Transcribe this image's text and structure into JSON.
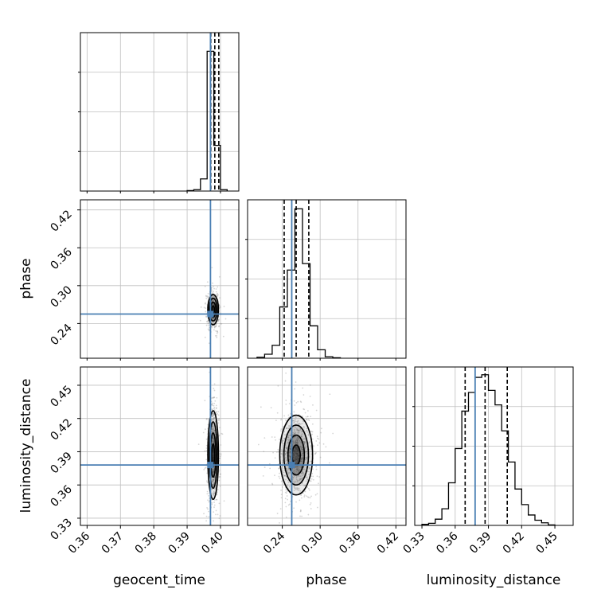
{
  "chart_data": {
    "type": "corner",
    "parameters": [
      "geocent_time",
      "phase",
      "luminosity_distance"
    ],
    "truths": {
      "geocent_time": 0.397,
      "phase": 0.255,
      "luminosity_distance": 0.378
    },
    "ranges": {
      "geocent_time": [
        0.358,
        0.4055
      ],
      "phase": [
        0.185,
        0.436
      ],
      "luminosity_distance": [
        0.3235,
        0.4665
      ]
    },
    "ticks": {
      "geocent_time": {
        "values": [
          0.36,
          0.37,
          0.38,
          0.39,
          0.4
        ],
        "labels": [
          "0.36",
          "0.37",
          "0.38",
          "0.39",
          "0.40"
        ]
      },
      "phase": {
        "values": [
          0.24,
          0.3,
          0.36,
          0.42
        ],
        "labels": [
          "0.24",
          "0.30",
          "0.36",
          "0.42"
        ]
      },
      "luminosity_distance": {
        "values": [
          0.33,
          0.36,
          0.39,
          0.42,
          0.45
        ],
        "labels": [
          "0.33",
          "0.36",
          "0.39",
          "0.42",
          "0.45"
        ]
      }
    },
    "quantiles": {
      "geocent_time": [
        0.3971,
        0.3983,
        0.3995
      ],
      "phase": [
        0.243,
        0.262,
        0.282
      ],
      "luminosity_distance": [
        0.369,
        0.387,
        0.407
      ]
    },
    "marginals": {
      "geocent_time": {
        "bins": [
          0.39,
          0.392,
          0.394,
          0.396,
          0.398,
          0.4,
          0.402
        ],
        "counts": [
          1,
          3,
          26,
          300,
          98,
          3
        ],
        "ylim": [
          0,
          340
        ]
      },
      "phase": {
        "bins": [
          0.2,
          0.212,
          0.224,
          0.236,
          0.248,
          0.26,
          0.272,
          0.284,
          0.296,
          0.308,
          0.32,
          0.332
        ],
        "counts": [
          2,
          8,
          26,
          103,
          177,
          300,
          190,
          65,
          17,
          3,
          1
        ],
        "ylim": [
          0,
          318
        ]
      },
      "luminosity_distance": {
        "bins": [
          0.33,
          0.336,
          0.342,
          0.348,
          0.354,
          0.36,
          0.366,
          0.372,
          0.378,
          0.384,
          0.39,
          0.396,
          0.402,
          0.408,
          0.414,
          0.42,
          0.426,
          0.432,
          0.438,
          0.444,
          0.45
        ],
        "counts": [
          2,
          4,
          12,
          32,
          82,
          148,
          220,
          256,
          285,
          290,
          260,
          232,
          182,
          122,
          70,
          40,
          20,
          10,
          5,
          1
        ],
        "ylim": [
          0,
          305
        ]
      }
    },
    "joint": [
      {
        "x": "geocent_time",
        "y": "phase",
        "center": [
          0.3978,
          0.262
        ],
        "sigma": [
          0.0008,
          0.012
        ]
      },
      {
        "x": "geocent_time",
        "y": "luminosity_distance",
        "center": [
          0.3978,
          0.387
        ],
        "sigma": [
          0.0008,
          0.02
        ]
      },
      {
        "x": "phase",
        "y": "luminosity_distance",
        "center": [
          0.262,
          0.387
        ],
        "sigma": [
          0.013,
          0.018
        ]
      }
    ],
    "colors": {
      "truth": "#4a7fb3",
      "hist": "#000000",
      "scatter": "#8a8a8a",
      "grid": "#bfbfbf"
    },
    "grid": true
  }
}
